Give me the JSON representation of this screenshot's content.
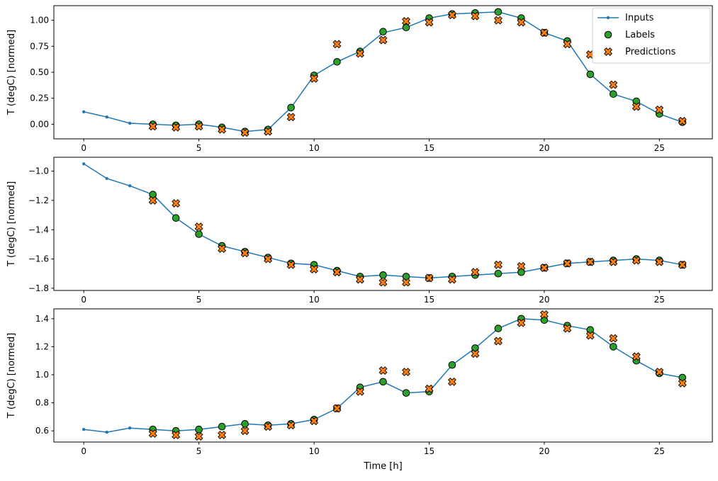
{
  "figure": {
    "xlabel": "Time [h]",
    "xticks": [
      0,
      5,
      10,
      15,
      20,
      25
    ],
    "xlim": [
      -1.3,
      27.3
    ],
    "colors": {
      "inputs": "#1f77b4",
      "labels": "#2ca02c",
      "predictions": "#ff7f0e",
      "marker_edge": "#000000",
      "legend_edge": "#cccccc",
      "axes_edge": "#000000",
      "background": "#ffffff"
    },
    "legend": {
      "position": "upper right",
      "items": [
        {
          "label": "Inputs",
          "marker": "line-dot",
          "color": "#1f77b4"
        },
        {
          "label": "Labels",
          "marker": "circle",
          "color": "#2ca02c"
        },
        {
          "label": "Predictions",
          "marker": "x",
          "color": "#ff7f0e"
        }
      ]
    }
  },
  "chart_data": [
    {
      "type": "line",
      "title": "",
      "ylabel": "T (degC) [normed]",
      "ylim": [
        -0.14,
        1.14
      ],
      "yticks": {
        "values": [
          0.0,
          0.25,
          0.5,
          0.75,
          1.0
        ],
        "labels": [
          "0.00",
          "0.25",
          "0.50",
          "0.75",
          "1.00"
        ]
      },
      "series": [
        {
          "name": "Inputs",
          "x": [
            0,
            1,
            2,
            3,
            4,
            5,
            6,
            7,
            8,
            9,
            10,
            11,
            12,
            13,
            14,
            15,
            16,
            17,
            18,
            19,
            20,
            21,
            22,
            23,
            24,
            25,
            26
          ],
          "y": [
            0.12,
            0.07,
            0.01,
            0.0,
            -0.01,
            0.0,
            -0.03,
            -0.07,
            -0.05,
            0.16,
            0.47,
            0.6,
            0.7,
            0.88,
            0.93,
            1.02,
            1.06,
            1.07,
            1.08,
            1.02,
            0.88,
            0.8,
            0.48,
            0.29,
            0.22,
            0.1,
            0.02
          ]
        },
        {
          "name": "Labels",
          "x": [
            3,
            4,
            5,
            6,
            7,
            8,
            9,
            10,
            11,
            12,
            13,
            14,
            15,
            16,
            17,
            18,
            19,
            20,
            21,
            22,
            23,
            24,
            25,
            26
          ],
          "y": [
            0.0,
            -0.01,
            0.0,
            -0.03,
            -0.07,
            -0.05,
            0.16,
            0.47,
            0.6,
            0.7,
            0.89,
            0.93,
            1.02,
            1.06,
            1.07,
            1.08,
            1.02,
            0.88,
            0.8,
            0.48,
            0.29,
            0.22,
            0.1,
            0.02
          ]
        },
        {
          "name": "Predictions",
          "x": [
            3,
            4,
            5,
            6,
            7,
            8,
            9,
            10,
            11,
            12,
            13,
            14,
            15,
            16,
            17,
            18,
            19,
            20,
            21,
            22,
            23,
            24,
            25,
            26
          ],
          "y": [
            -0.02,
            -0.03,
            -0.02,
            -0.05,
            -0.08,
            -0.07,
            0.07,
            0.44,
            0.77,
            0.68,
            0.81,
            0.99,
            0.98,
            1.05,
            1.04,
            1.0,
            0.98,
            0.88,
            0.77,
            0.67,
            0.38,
            0.17,
            0.14,
            0.03
          ]
        }
      ]
    },
    {
      "type": "line",
      "title": "",
      "ylabel": "T (degC) [normed]",
      "ylim": [
        -1.815,
        -0.905
      ],
      "yticks": {
        "values": [
          -1.0,
          -1.2,
          -1.4,
          -1.6,
          -1.8
        ],
        "labels": [
          "−1.0",
          "−1.2",
          "−1.4",
          "−1.6",
          "−1.8"
        ]
      },
      "series": [
        {
          "name": "Inputs",
          "x": [
            0,
            1,
            2,
            3,
            4,
            5,
            6,
            7,
            8,
            9,
            10,
            11,
            12,
            13,
            14,
            15,
            16,
            17,
            18,
            19,
            20,
            21,
            22,
            23,
            24,
            25,
            26
          ],
          "y": [
            -0.95,
            -1.05,
            -1.1,
            -1.16,
            -1.32,
            -1.43,
            -1.51,
            -1.55,
            -1.59,
            -1.63,
            -1.64,
            -1.68,
            -1.72,
            -1.71,
            -1.72,
            -1.73,
            -1.72,
            -1.71,
            -1.7,
            -1.69,
            -1.66,
            -1.63,
            -1.62,
            -1.61,
            -1.6,
            -1.61,
            -1.64
          ]
        },
        {
          "name": "Labels",
          "x": [
            3,
            4,
            5,
            6,
            7,
            8,
            9,
            10,
            11,
            12,
            13,
            14,
            15,
            16,
            17,
            18,
            19,
            20,
            21,
            22,
            23,
            24,
            25,
            26
          ],
          "y": [
            -1.16,
            -1.32,
            -1.43,
            -1.51,
            -1.55,
            -1.59,
            -1.63,
            -1.64,
            -1.68,
            -1.72,
            -1.71,
            -1.72,
            -1.73,
            -1.72,
            -1.71,
            -1.7,
            -1.69,
            -1.66,
            -1.63,
            -1.62,
            -1.61,
            -1.6,
            -1.61,
            -1.64
          ]
        },
        {
          "name": "Predictions",
          "x": [
            3,
            4,
            5,
            6,
            7,
            8,
            9,
            10,
            11,
            12,
            13,
            14,
            15,
            16,
            17,
            18,
            19,
            20,
            21,
            22,
            23,
            24,
            25,
            26
          ],
          "y": [
            -1.2,
            -1.22,
            -1.38,
            -1.53,
            -1.56,
            -1.6,
            -1.64,
            -1.67,
            -1.69,
            -1.74,
            -1.76,
            -1.76,
            -1.73,
            -1.74,
            -1.69,
            -1.64,
            -1.65,
            -1.66,
            -1.63,
            -1.62,
            -1.62,
            -1.61,
            -1.62,
            -1.64
          ]
        }
      ]
    },
    {
      "type": "line",
      "title": "",
      "ylabel": "T (degC) [normed]",
      "ylim": [
        0.52,
        1.47
      ],
      "yticks": {
        "values": [
          0.6,
          0.8,
          1.0,
          1.2,
          1.4
        ],
        "labels": [
          "0.6",
          "0.8",
          "1.0",
          "1.2",
          "1.4"
        ]
      },
      "series": [
        {
          "name": "Inputs",
          "x": [
            0,
            1,
            2,
            3,
            4,
            5,
            6,
            7,
            8,
            9,
            10,
            11,
            12,
            13,
            14,
            15,
            16,
            17,
            18,
            19,
            20,
            21,
            22,
            23,
            24,
            25,
            26
          ],
          "y": [
            0.61,
            0.59,
            0.62,
            0.61,
            0.6,
            0.61,
            0.63,
            0.65,
            0.64,
            0.65,
            0.68,
            0.76,
            0.91,
            0.95,
            0.87,
            0.88,
            1.07,
            1.19,
            1.33,
            1.4,
            1.39,
            1.35,
            1.32,
            1.2,
            1.1,
            1.01,
            0.98
          ]
        },
        {
          "name": "Labels",
          "x": [
            3,
            4,
            5,
            6,
            7,
            8,
            9,
            10,
            11,
            12,
            13,
            14,
            15,
            16,
            17,
            18,
            19,
            20,
            21,
            22,
            23,
            24,
            25,
            26
          ],
          "y": [
            0.61,
            0.6,
            0.61,
            0.63,
            0.65,
            0.64,
            0.65,
            0.68,
            0.76,
            0.91,
            0.95,
            0.87,
            0.88,
            1.07,
            1.19,
            1.33,
            1.4,
            1.39,
            1.35,
            1.32,
            1.2,
            1.1,
            1.01,
            0.98
          ]
        },
        {
          "name": "Predictions",
          "x": [
            3,
            4,
            5,
            6,
            7,
            8,
            9,
            10,
            11,
            12,
            13,
            14,
            15,
            16,
            17,
            18,
            19,
            20,
            21,
            22,
            23,
            24,
            25,
            26
          ],
          "y": [
            0.58,
            0.57,
            0.56,
            0.57,
            0.6,
            0.63,
            0.64,
            0.67,
            0.76,
            0.88,
            1.03,
            1.02,
            0.9,
            0.95,
            1.15,
            1.24,
            1.37,
            1.43,
            1.33,
            1.28,
            1.26,
            1.13,
            1.02,
            0.94
          ]
        }
      ]
    }
  ]
}
